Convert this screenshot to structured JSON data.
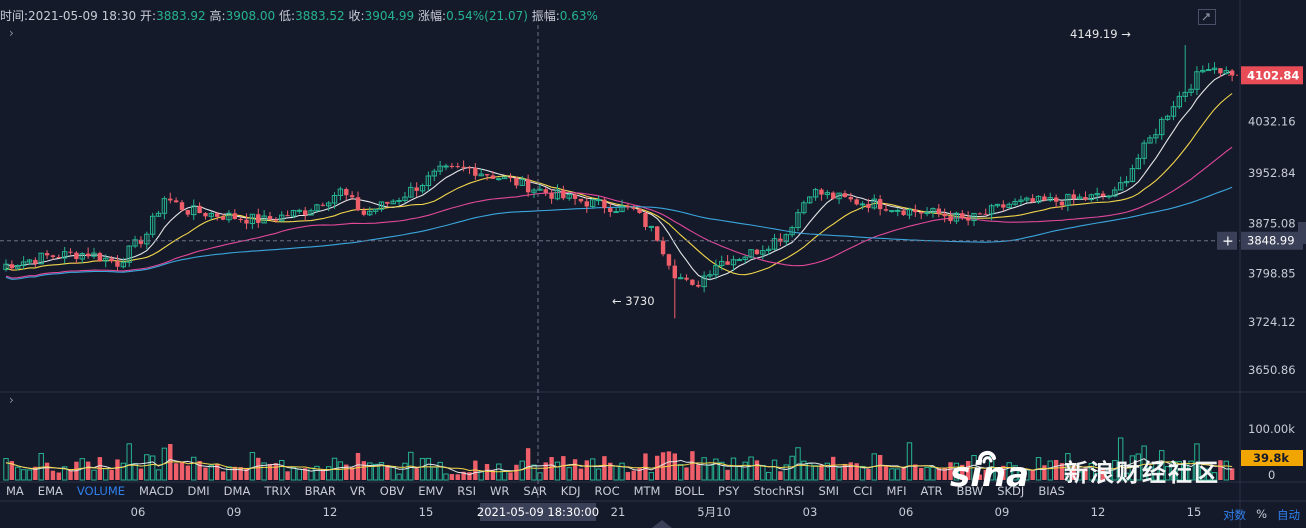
{
  "info": {
    "time_label": "时间:",
    "time_value": "2021-05-09 18:30",
    "open_label": "开:",
    "open_value": "3883.92",
    "high_label": "高:",
    "high_value": "3908.00",
    "low_label": "低:",
    "low_value": "3883.52",
    "close_label": "收:",
    "close_value": "3904.99",
    "change_label": "涨幅:",
    "change_value": "0.54%(21.07)",
    "amp_label": "振幅:",
    "amp_value": "0.63%"
  },
  "price_axis": [
    "4032.16",
    "3952.84",
    "3875.08",
    "3798.85",
    "3724.12",
    "3650.86"
  ],
  "last_price": "4102.84",
  "cross_price": "3848.99",
  "volume_axis": [
    "100.00k",
    "0"
  ],
  "volume_last": "39.8k",
  "annotations": {
    "high": "4149.19 →",
    "low": "← 3730"
  },
  "x_axis": [
    "06",
    "09",
    "12",
    "15",
    "2021-05-09 18:30:00",
    "21",
    "5月10",
    "03",
    "06",
    "09",
    "12",
    "15"
  ],
  "indicators": [
    "MA",
    "EMA",
    "VOLUME",
    "MACD",
    "DMI",
    "DMA",
    "TRIX",
    "BRAR",
    "VR",
    "OBV",
    "EMV",
    "RSI",
    "WR",
    "SAR",
    "KDJ",
    "ROC",
    "MTM",
    "BOLL",
    "PSY",
    "StochRSI",
    "SMI",
    "CCI",
    "MFI",
    "ATR",
    "BBW",
    "SKDJ",
    "BIAS"
  ],
  "active_indicator": "VOLUME",
  "controls": {
    "log": "对数",
    "percent": "%",
    "auto": "自动"
  },
  "watermark": {
    "logo": "sina",
    "text": "新浪财经社区"
  },
  "colors": {
    "up": "#26b38f",
    "down": "#ef5f6a",
    "ma_white": "#e6e6e6",
    "ma_yellow": "#f2d64b",
    "ma_pink": "#e0489a",
    "ma_blue": "#3aa6dc",
    "price_tag": "#e84c56",
    "vol_tag": "#f0a500",
    "bg": "#151a2b"
  },
  "chart_data": {
    "type": "candlestick",
    "ylim": [
      3620,
      4180
    ],
    "vol_max": 120,
    "n": 210,
    "anchors": [
      [
        0,
        3810
      ],
      [
        8,
        3825
      ],
      [
        15,
        3830
      ],
      [
        20,
        3815
      ],
      [
        25,
        3860
      ],
      [
        28,
        3915
      ],
      [
        32,
        3895
      ],
      [
        40,
        3885
      ],
      [
        45,
        3880
      ],
      [
        52,
        3895
      ],
      [
        58,
        3925
      ],
      [
        62,
        3890
      ],
      [
        68,
        3915
      ],
      [
        75,
        3955
      ],
      [
        80,
        3960
      ],
      [
        88,
        3938
      ],
      [
        96,
        3915
      ],
      [
        102,
        3905
      ],
      [
        108,
        3895
      ],
      [
        112,
        3855
      ],
      [
        115,
        3800
      ],
      [
        118,
        3775
      ],
      [
        122,
        3815
      ],
      [
        128,
        3830
      ],
      [
        134,
        3860
      ],
      [
        138,
        3925
      ],
      [
        145,
        3910
      ],
      [
        150,
        3905
      ],
      [
        155,
        3895
      ],
      [
        160,
        3890
      ],
      [
        165,
        3880
      ],
      [
        172,
        3905
      ],
      [
        180,
        3910
      ],
      [
        186,
        3915
      ],
      [
        190,
        3920
      ],
      [
        195,
        3990
      ],
      [
        200,
        4060
      ],
      [
        206,
        4120
      ],
      [
        210,
        4103
      ]
    ],
    "high": 4149.19,
    "low": 3730,
    "last": 4102.84
  }
}
